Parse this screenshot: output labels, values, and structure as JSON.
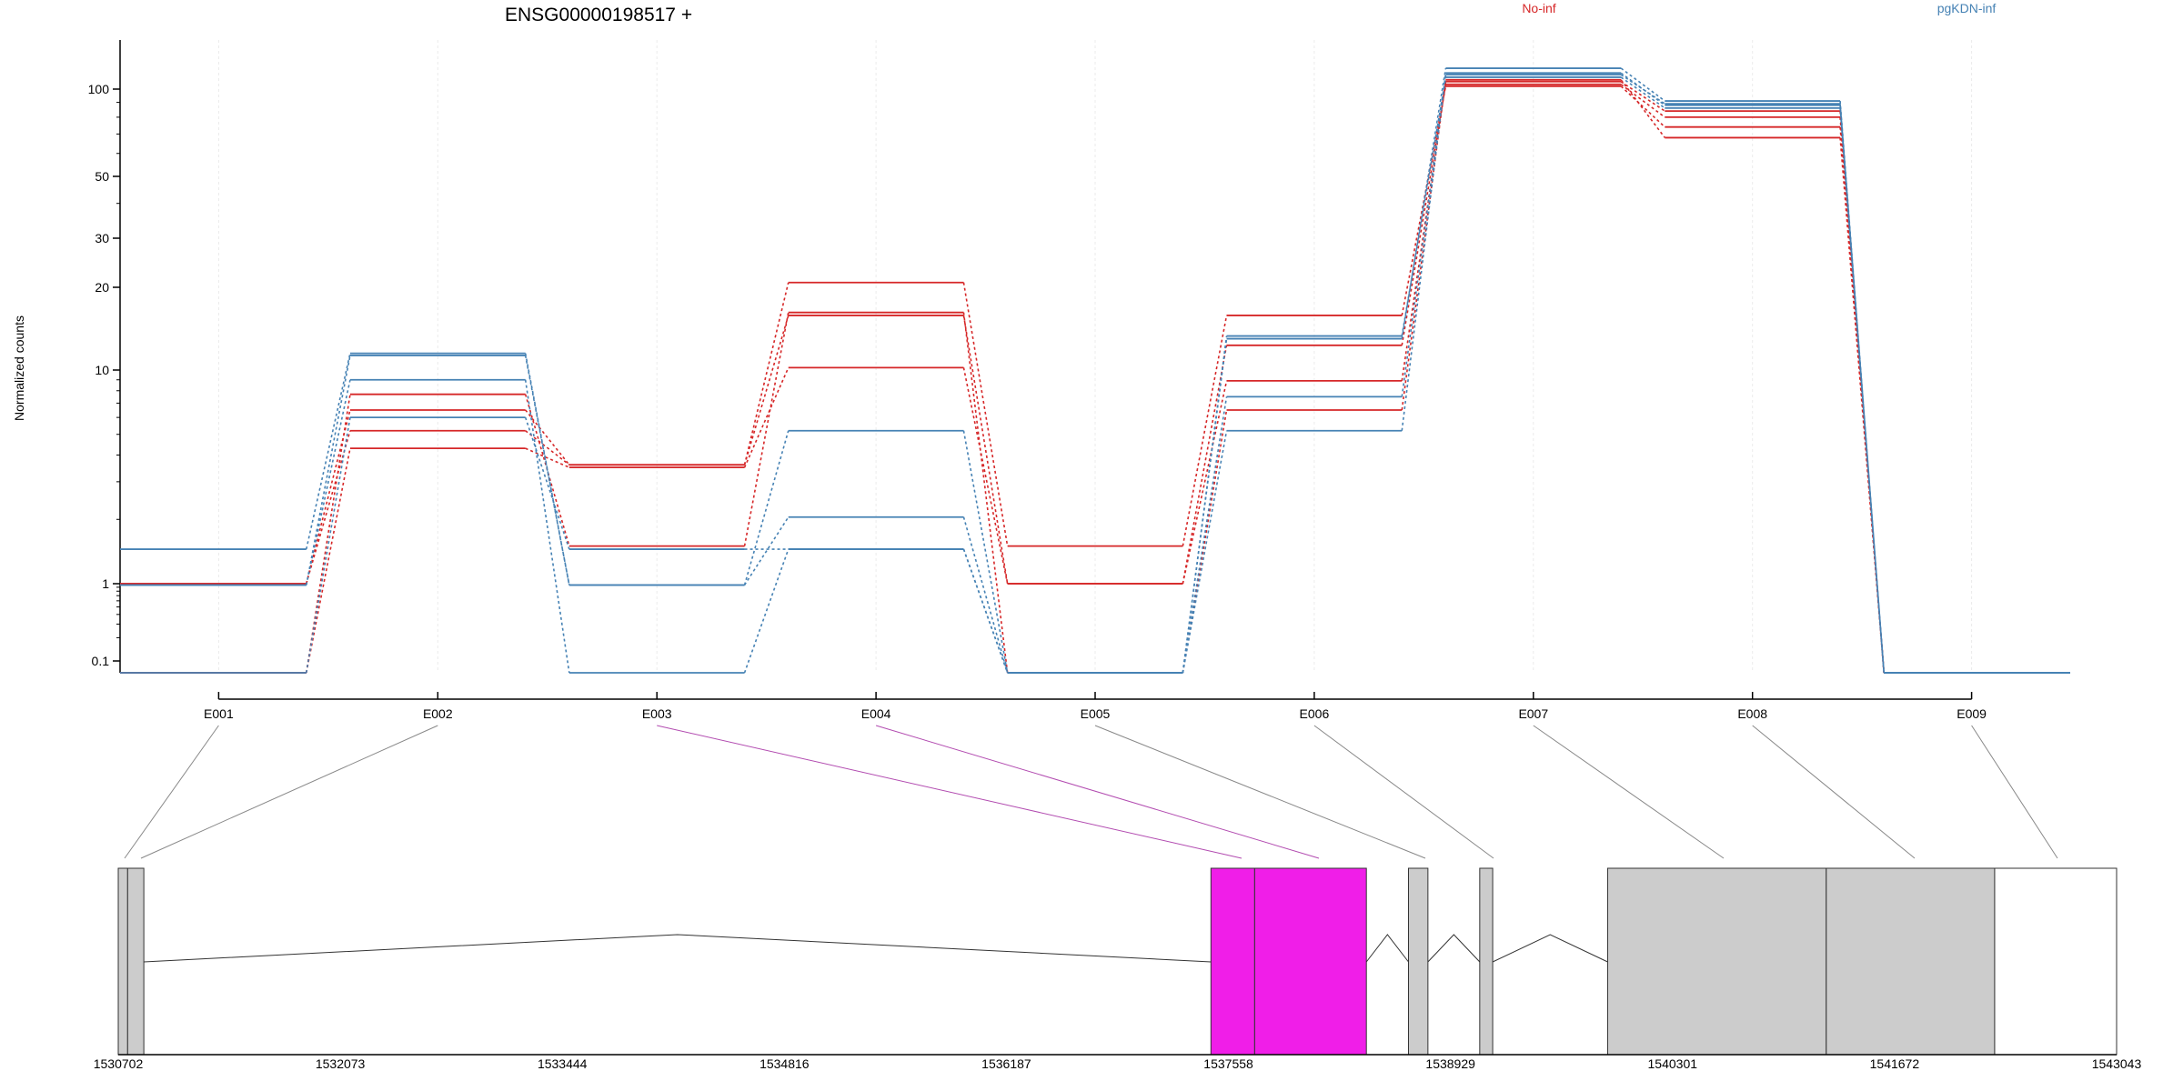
{
  "chart_data": {
    "type": "line",
    "title": "ENSG00000198517 +",
    "ylabel": "Normalized counts",
    "xlabel": "",
    "y_scale": "log",
    "ylim": [
      0.085,
      160
    ],
    "y_ticks": [
      0.1,
      1,
      10,
      20,
      30,
      50,
      100
    ],
    "grid": true,
    "legend": {
      "placement": "top-right",
      "entries": [
        {
          "name": "No-inf",
          "color": "#d62728"
        },
        {
          "name": "pgKDN-inf",
          "color": "#4682b4"
        }
      ]
    },
    "categories": [
      "E001",
      "E002",
      "E003",
      "E004",
      "E005",
      "E006",
      "E007",
      "E008",
      "E009"
    ],
    "highlighted_exons": [
      "E003",
      "E004"
    ],
    "series": [
      {
        "group": "No-inf",
        "color": "#d62728",
        "values": [
          1.0,
          6.5,
          3.6,
          20.8,
          1.5,
          15.8,
          103,
          74,
          0.08
        ]
      },
      {
        "group": "No-inf",
        "color": "#d62728",
        "values": [
          1.0,
          5.2,
          3.6,
          15.8,
          1.0,
          12.3,
          105,
          80,
          0.08
        ]
      },
      {
        "group": "No-inf",
        "color": "#d62728",
        "values": [
          0.08,
          4.3,
          3.5,
          10.2,
          1.0,
          8.9,
          108,
          84,
          0.08
        ]
      },
      {
        "group": "No-inf",
        "color": "#d62728",
        "values": [
          0.08,
          7.7,
          1.5,
          16.2,
          0.08,
          6.5,
          110,
          68,
          0.08
        ]
      },
      {
        "group": "pgKDN-inf",
        "color": "#4682b4",
        "values": [
          1.45,
          11.5,
          0.96,
          5.2,
          0.08,
          13.0,
          124,
          91,
          0.08
        ]
      },
      {
        "group": "pgKDN-inf",
        "color": "#4682b4",
        "values": [
          0.96,
          11.3,
          0.96,
          2.05,
          0.08,
          7.5,
          116,
          89,
          0.08
        ]
      },
      {
        "group": "pgKDN-inf",
        "color": "#4682b4",
        "values": [
          0.96,
          9.0,
          0.08,
          1.45,
          0.08,
          5.2,
          118,
          88,
          0.08
        ]
      },
      {
        "group": "pgKDN-inf",
        "color": "#4682b4",
        "values": [
          0.08,
          6.0,
          1.45,
          1.45,
          0.08,
          13.3,
          113,
          86,
          0.08
        ]
      }
    ],
    "gene_model": {
      "x_range": [
        1530702,
        1543043
      ],
      "tick_labels": [
        "1530702",
        "1532073",
        "1533444",
        "1534816",
        "1536187",
        "1537558",
        "1538929",
        "1540301",
        "1541672",
        "1543043"
      ],
      "highlight_color": "#f01ee8",
      "exon_color": "#cccccc"
    }
  }
}
